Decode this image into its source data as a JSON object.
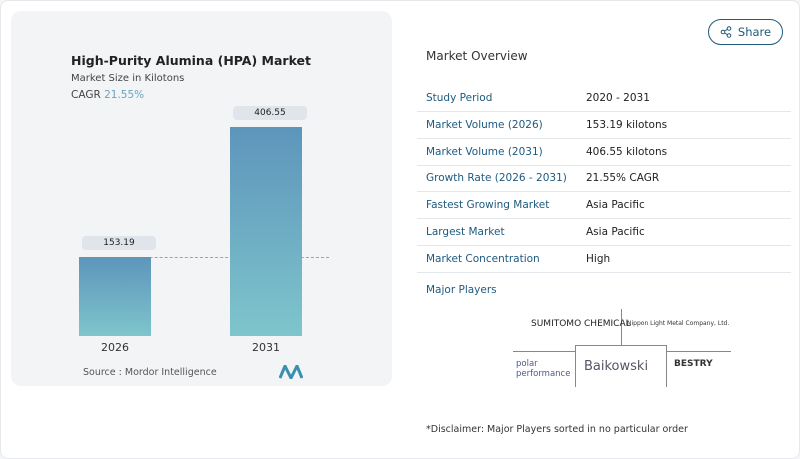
{
  "share_label": "Share",
  "chart": {
    "title": "High-Purity Alumina (HPA) Market",
    "subtitle": "Market Size in Kilotons",
    "cagr_label": "CAGR",
    "cagr_value": "21.55%",
    "source": "Source :  Mordor Intelligence"
  },
  "chart_data": {
    "type": "bar",
    "categories": [
      "2026",
      "2031"
    ],
    "values": [
      153.19,
      406.55
    ],
    "value_labels": [
      "153.19",
      "406.55"
    ],
    "title": "High-Purity Alumina (HPA) Market",
    "ylabel": "Market Size in Kilotons",
    "colors": [
      "#5d95bb",
      "#7ec5cc"
    ]
  },
  "overview": {
    "title": "Market Overview",
    "rows": [
      {
        "label": "Study Period",
        "value": "2020 - 2031"
      },
      {
        "label": "Market Volume (2026)",
        "value": "153.19 kilotons"
      },
      {
        "label": "Market Volume (2031)",
        "value": "406.55 kilotons"
      },
      {
        "label": "Growth Rate (2026 - 2031)",
        "value": "21.55% CAGR"
      },
      {
        "label": "Fastest Growing Market",
        "value": "Asia Pacific"
      },
      {
        "label": "Largest Market",
        "value": "Asia Pacific"
      },
      {
        "label": "Market Concentration",
        "value": "High"
      }
    ],
    "major_players_label": "Major Players",
    "players": [
      "SUMITOMO CHEMICAL",
      "Nippon Light Metal Company, Ltd.",
      "polar performance",
      "Baikowski",
      "BESTRY"
    ],
    "disclaimer": "*Disclaimer: Major Players sorted in no particular order"
  }
}
